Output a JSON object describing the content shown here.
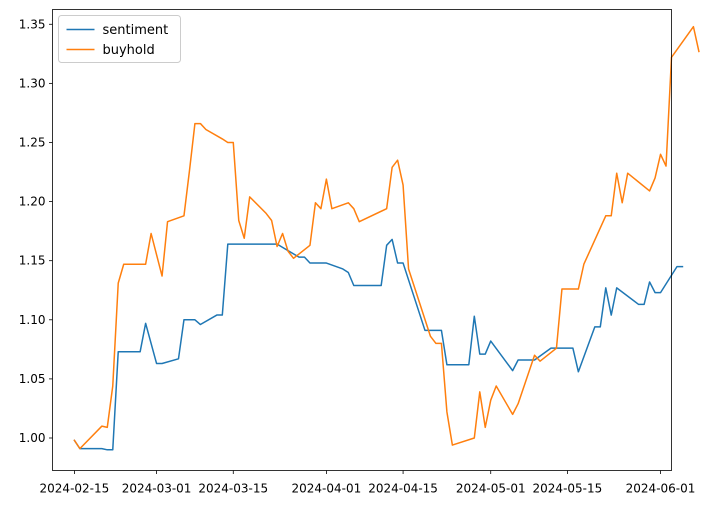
{
  "chart_data": {
    "type": "line",
    "title": "",
    "xlabel": "",
    "ylabel": "",
    "xlim": [
      "2024-02-11",
      "2024-06-03"
    ],
    "ylim": [
      0.9725,
      1.3625
    ],
    "x_ticks": [
      "2024-02-15",
      "2024-03-01",
      "2024-03-15",
      "2024-04-01",
      "2024-04-15",
      "2024-05-01",
      "2024-05-15",
      "2024-06-01"
    ],
    "y_ticks": [
      "1.00",
      "1.05",
      "1.10",
      "1.15",
      "1.20",
      "1.25",
      "1.30",
      "1.35"
    ],
    "grid": false,
    "legend": {
      "position": "top-left",
      "entries": [
        "sentiment",
        "buyhold"
      ]
    },
    "series": [
      {
        "name": "sentiment",
        "color": "#1f77b4",
        "points": [
          [
            "2024-02-15",
            0.998
          ],
          [
            "2024-02-16",
            0.991
          ],
          [
            "2024-02-20",
            0.991
          ],
          [
            "2024-02-21",
            0.99
          ],
          [
            "2024-02-22",
            0.99
          ],
          [
            "2024-02-23",
            1.073
          ],
          [
            "2024-02-27",
            1.073
          ],
          [
            "2024-02-28",
            1.097
          ],
          [
            "2024-03-01",
            1.063
          ],
          [
            "2024-03-02",
            1.063
          ],
          [
            "2024-03-05",
            1.067
          ],
          [
            "2024-03-06",
            1.1
          ],
          [
            "2024-03-08",
            1.1
          ],
          [
            "2024-03-09",
            1.096
          ],
          [
            "2024-03-12",
            1.104
          ],
          [
            "2024-03-13",
            1.104
          ],
          [
            "2024-03-14",
            1.164
          ],
          [
            "2024-03-23",
            1.164
          ],
          [
            "2024-03-27",
            1.153
          ],
          [
            "2024-03-28",
            1.153
          ],
          [
            "2024-03-29",
            1.148
          ],
          [
            "2024-04-01",
            1.148
          ],
          [
            "2024-04-04",
            1.143
          ],
          [
            "2024-04-05",
            1.14
          ],
          [
            "2024-04-06",
            1.129
          ],
          [
            "2024-04-11",
            1.129
          ],
          [
            "2024-04-12",
            1.163
          ],
          [
            "2024-04-13",
            1.168
          ],
          [
            "2024-04-14",
            1.148
          ],
          [
            "2024-04-15",
            1.148
          ],
          [
            "2024-04-19",
            1.091
          ],
          [
            "2024-04-22",
            1.091
          ],
          [
            "2024-04-23",
            1.062
          ],
          [
            "2024-04-27",
            1.062
          ],
          [
            "2024-04-28",
            1.103
          ],
          [
            "2024-04-29",
            1.071
          ],
          [
            "2024-04-30",
            1.071
          ],
          [
            "2024-05-01",
            1.082
          ],
          [
            "2024-05-05",
            1.057
          ],
          [
            "2024-05-06",
            1.066
          ],
          [
            "2024-05-09",
            1.066
          ],
          [
            "2024-05-12",
            1.076
          ],
          [
            "2024-05-16",
            1.076
          ],
          [
            "2024-05-17",
            1.056
          ],
          [
            "2024-05-20",
            1.094
          ],
          [
            "2024-05-21",
            1.094
          ],
          [
            "2024-05-22",
            1.127
          ],
          [
            "2024-05-23",
            1.104
          ],
          [
            "2024-05-24",
            1.127
          ],
          [
            "2024-05-28",
            1.113
          ],
          [
            "2024-05-29",
            1.113
          ],
          [
            "2024-05-30",
            1.132
          ],
          [
            "2024-05-31",
            1.123
          ],
          [
            "2024-06-01",
            1.123
          ],
          [
            "2024-06-04",
            1.145
          ],
          [
            "2024-06-05",
            1.145
          ]
        ]
      },
      {
        "name": "buyhold",
        "color": "#ff7f0e",
        "points": [
          [
            "2024-02-15",
            0.998
          ],
          [
            "2024-02-16",
            0.991
          ],
          [
            "2024-02-20",
            1.01
          ],
          [
            "2024-02-21",
            1.009
          ],
          [
            "2024-02-22",
            1.044
          ],
          [
            "2024-02-23",
            1.131
          ],
          [
            "2024-02-24",
            1.147
          ],
          [
            "2024-02-28",
            1.147
          ],
          [
            "2024-02-29",
            1.173
          ],
          [
            "2024-03-02",
            1.137
          ],
          [
            "2024-03-03",
            1.183
          ],
          [
            "2024-03-06",
            1.188
          ],
          [
            "2024-03-07",
            1.226
          ],
          [
            "2024-03-08",
            1.266
          ],
          [
            "2024-03-09",
            1.266
          ],
          [
            "2024-03-10",
            1.261
          ],
          [
            "2024-03-13",
            1.253
          ],
          [
            "2024-03-14",
            1.25
          ],
          [
            "2024-03-15",
            1.25
          ],
          [
            "2024-03-16",
            1.184
          ],
          [
            "2024-03-17",
            1.169
          ],
          [
            "2024-03-18",
            1.204
          ],
          [
            "2024-03-21",
            1.19
          ],
          [
            "2024-03-22",
            1.184
          ],
          [
            "2024-03-23",
            1.162
          ],
          [
            "2024-03-24",
            1.173
          ],
          [
            "2024-03-25",
            1.158
          ],
          [
            "2024-03-26",
            1.152
          ],
          [
            "2024-03-29",
            1.163
          ],
          [
            "2024-03-30",
            1.199
          ],
          [
            "2024-03-31",
            1.194
          ],
          [
            "2024-04-01",
            1.219
          ],
          [
            "2024-04-02",
            1.194
          ],
          [
            "2024-04-05",
            1.199
          ],
          [
            "2024-04-06",
            1.194
          ],
          [
            "2024-04-07",
            1.183
          ],
          [
            "2024-04-12",
            1.194
          ],
          [
            "2024-04-13",
            1.229
          ],
          [
            "2024-04-14",
            1.235
          ],
          [
            "2024-04-15",
            1.214
          ],
          [
            "2024-04-16",
            1.143
          ],
          [
            "2024-04-20",
            1.086
          ],
          [
            "2024-04-21",
            1.08
          ],
          [
            "2024-04-22",
            1.08
          ],
          [
            "2024-04-23",
            1.022
          ],
          [
            "2024-04-24",
            0.994
          ],
          [
            "2024-04-28",
            1.0
          ],
          [
            "2024-04-29",
            1.039
          ],
          [
            "2024-04-30",
            1.009
          ],
          [
            "2024-05-01",
            1.032
          ],
          [
            "2024-05-02",
            1.044
          ],
          [
            "2024-05-05",
            1.02
          ],
          [
            "2024-05-06",
            1.029
          ],
          [
            "2024-05-09",
            1.07
          ],
          [
            "2024-05-10",
            1.065
          ],
          [
            "2024-05-13",
            1.076
          ],
          [
            "2024-05-14",
            1.126
          ],
          [
            "2024-05-17",
            1.126
          ],
          [
            "2024-05-18",
            1.147
          ],
          [
            "2024-05-22",
            1.188
          ],
          [
            "2024-05-23",
            1.188
          ],
          [
            "2024-05-24",
            1.224
          ],
          [
            "2024-05-25",
            1.199
          ],
          [
            "2024-05-26",
            1.224
          ],
          [
            "2024-05-30",
            1.209
          ],
          [
            "2024-05-31",
            1.22
          ],
          [
            "2024-06-01",
            1.24
          ],
          [
            "2024-06-02",
            1.23
          ],
          [
            "2024-06-03",
            1.322
          ],
          [
            "2024-06-07",
            1.348
          ],
          [
            "2024-06-08",
            1.327
          ]
        ]
      }
    ]
  }
}
